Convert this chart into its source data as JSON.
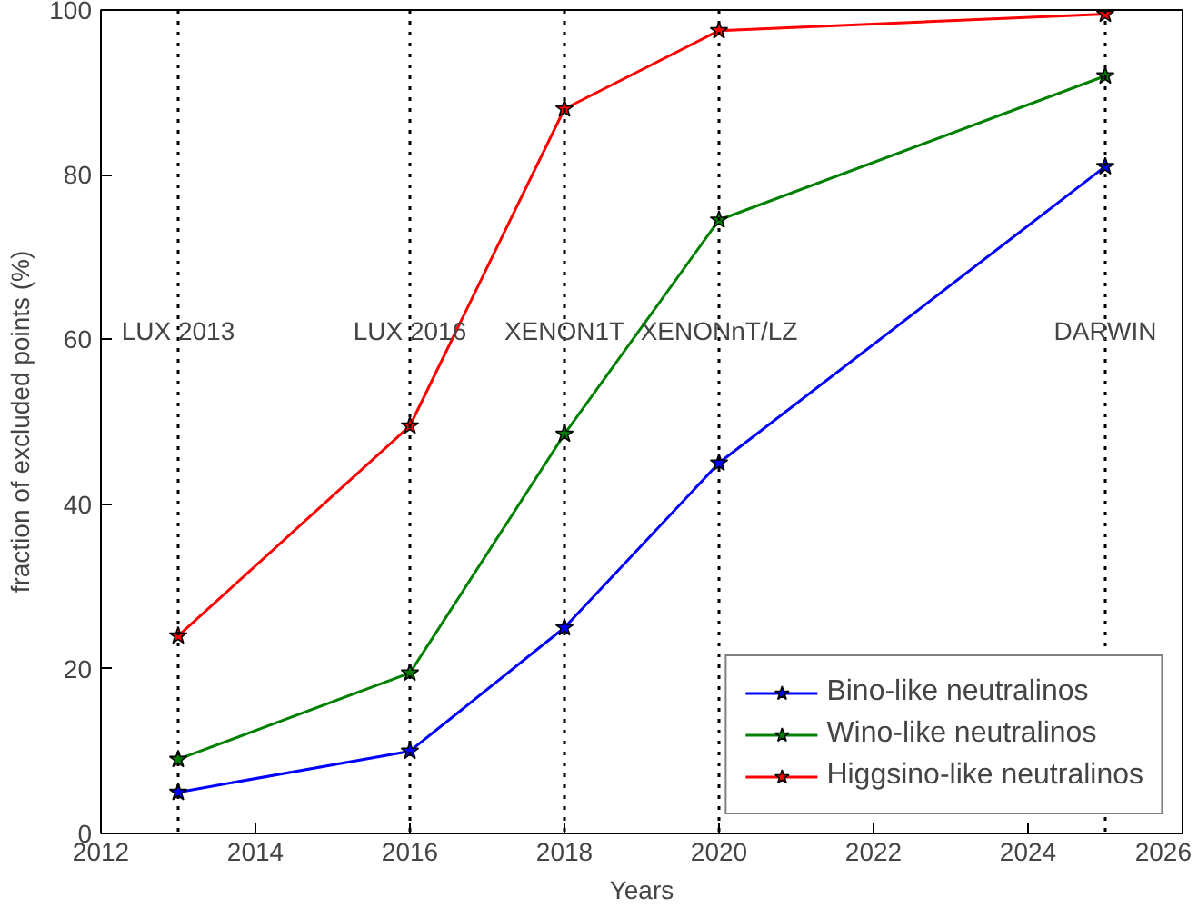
{
  "chart_data": {
    "type": "line",
    "xlabel": "Years",
    "ylabel": "fraction of excluded points (%)",
    "xlim": [
      2012,
      2026
    ],
    "xticks": [
      2012,
      2014,
      2016,
      2018,
      2020,
      2022,
      2024,
      2026
    ],
    "ylim": [
      0,
      100
    ],
    "yticks": [
      0,
      20,
      40,
      60,
      80,
      100
    ],
    "x": [
      2013,
      2016,
      2018,
      2020,
      2025
    ],
    "series": [
      {
        "name": "Bino-like neutralinos",
        "color": "#0000ff",
        "values": [
          5,
          10,
          25,
          45,
          81
        ]
      },
      {
        "name": "Wino-like neutralinos",
        "color": "#008000",
        "values": [
          9,
          19.5,
          48.5,
          74.5,
          92
        ]
      },
      {
        "name": "Higgsino-like neutralinos",
        "color": "#ff0000",
        "values": [
          24,
          49.5,
          88,
          97.5,
          99.5
        ]
      }
    ],
    "ref_lines": [
      {
        "axis": "x",
        "value": 2013,
        "label": "LUX 2013",
        "line_style": "dotted",
        "color": "#000000"
      },
      {
        "axis": "x",
        "value": 2016,
        "label": "LUX 2016",
        "line_style": "dotted",
        "color": "#000000"
      },
      {
        "axis": "x",
        "value": 2018,
        "label": "XENON1T",
        "line_style": "dotted",
        "color": "#000000"
      },
      {
        "axis": "x",
        "value": 2020,
        "label": "XENONnT/LZ",
        "line_style": "dotted",
        "color": "#000000"
      },
      {
        "axis": "x",
        "value": 2025,
        "label": "DARWIN",
        "line_style": "dotted",
        "color": "#000000"
      }
    ],
    "marker": "star",
    "line_style": "solid",
    "grid": false,
    "legend": "bottom right"
  }
}
